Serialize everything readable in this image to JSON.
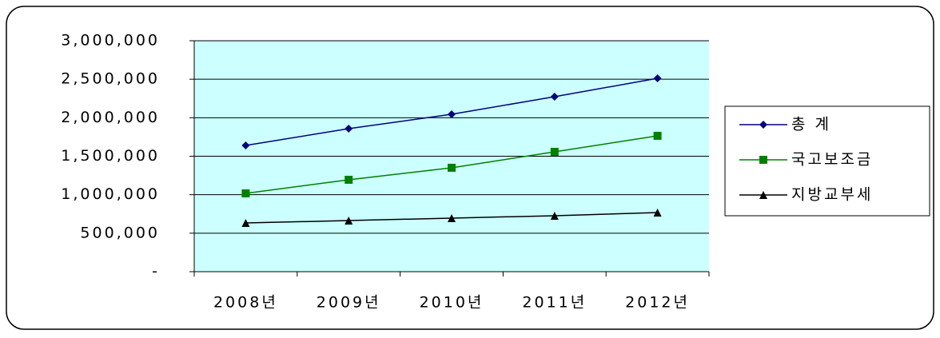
{
  "chart_data": {
    "type": "line",
    "categories": [
      "2008년",
      "2009년",
      "2010년",
      "2011년",
      "2012년"
    ],
    "series": [
      {
        "name": "총 계",
        "color": "#000080",
        "marker": "diamond",
        "values": [
          1640000,
          1858000,
          2045000,
          2273000,
          2512000
        ]
      },
      {
        "name": "국고보조금",
        "color": "#008000",
        "marker": "square",
        "values": [
          1017000,
          1194000,
          1350000,
          1557000,
          1765000
        ]
      },
      {
        "name": "지방교부세",
        "color": "#000000",
        "marker": "triangle",
        "values": [
          633000,
          664000,
          696000,
          727000,
          768000
        ]
      }
    ],
    "ylim": [
      0,
      3000000
    ],
    "yticks": [
      {
        "value": 0,
        "label": "-"
      },
      {
        "value": 500000,
        "label": "500,000"
      },
      {
        "value": 1000000,
        "label": "1,000,000"
      },
      {
        "value": 1500000,
        "label": "1,500,000"
      },
      {
        "value": 2000000,
        "label": "2,000,000"
      },
      {
        "value": 2500000,
        "label": "2,500,000"
      },
      {
        "value": 3000000,
        "label": "3,000,000"
      }
    ],
    "grid": true,
    "plot_background": "#ccffff",
    "legend": "right"
  }
}
